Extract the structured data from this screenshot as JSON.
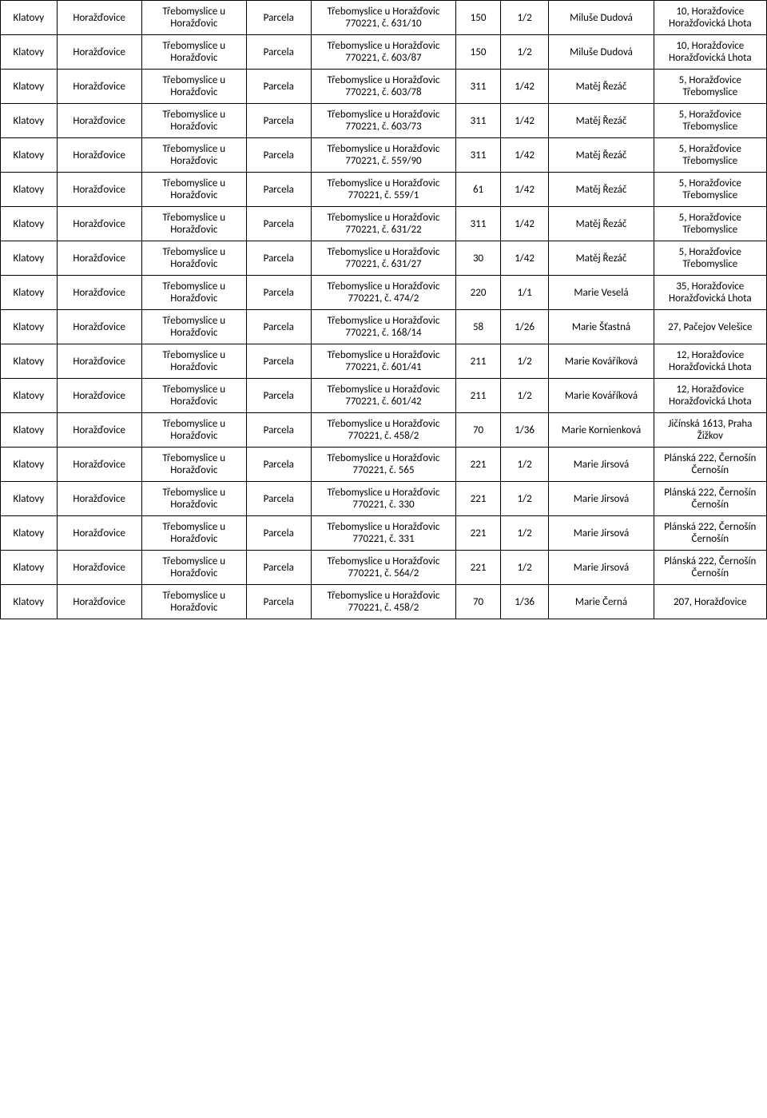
{
  "table": {
    "type": "table",
    "columns": [
      {
        "key": "okres",
        "width": "7%",
        "align": "center"
      },
      {
        "key": "obec",
        "width": "10.5%",
        "align": "center"
      },
      {
        "key": "katastr",
        "width": "13%",
        "align": "center"
      },
      {
        "key": "typ",
        "width": "8%",
        "align": "center"
      },
      {
        "key": "parcela",
        "width": "18%",
        "align": "center"
      },
      {
        "key": "vymera",
        "width": "5.5%",
        "align": "center"
      },
      {
        "key": "podil",
        "width": "6%",
        "align": "center"
      },
      {
        "key": "vlastnik",
        "width": "13%",
        "align": "center"
      },
      {
        "key": "adresa",
        "width": "14%",
        "align": "center"
      }
    ],
    "border_color": "#000000",
    "background_color": "#ffffff",
    "text_color": "#000000",
    "font_family": "Calibri",
    "font_size": 13,
    "rows": [
      {
        "okres": "Klatovy",
        "obec": "Horažďovice",
        "katastr": "Třebomyslice u Horažďovic",
        "typ": "Parcela",
        "parcela": "Třebomyslice u Horažďovic 770221, č. 631/10",
        "vymera": "150",
        "podil": "1/2",
        "vlastnik": "Miluše Dudová",
        "adresa": "10, Horažďovice Horažďovická Lhota"
      },
      {
        "okres": "Klatovy",
        "obec": "Horažďovice",
        "katastr": "Třebomyslice u Horažďovic",
        "typ": "Parcela",
        "parcela": "Třebomyslice u Horažďovic 770221, č. 603/87",
        "vymera": "150",
        "podil": "1/2",
        "vlastnik": "Miluše Dudová",
        "adresa": "10, Horažďovice Horažďovická Lhota"
      },
      {
        "okres": "Klatovy",
        "obec": "Horažďovice",
        "katastr": "Třebomyslice u Horažďovic",
        "typ": "Parcela",
        "parcela": "Třebomyslice u Horažďovic 770221, č. 603/78",
        "vymera": "311",
        "podil": "1/42",
        "vlastnik": "Matěj Řezáč",
        "adresa": "5, Horažďovice Třebomyslice"
      },
      {
        "okres": "Klatovy",
        "obec": "Horažďovice",
        "katastr": "Třebomyslice u Horažďovic",
        "typ": "Parcela",
        "parcela": "Třebomyslice u Horažďovic 770221, č. 603/73",
        "vymera": "311",
        "podil": "1/42",
        "vlastnik": "Matěj Řezáč",
        "adresa": "5, Horažďovice Třebomyslice"
      },
      {
        "okres": "Klatovy",
        "obec": "Horažďovice",
        "katastr": "Třebomyslice u Horažďovic",
        "typ": "Parcela",
        "parcela": "Třebomyslice u Horažďovic 770221, č. 559/90",
        "vymera": "311",
        "podil": "1/42",
        "vlastnik": "Matěj Řezáč",
        "adresa": "5, Horažďovice Třebomyslice"
      },
      {
        "okres": "Klatovy",
        "obec": "Horažďovice",
        "katastr": "Třebomyslice u Horažďovic",
        "typ": "Parcela",
        "parcela": "Třebomyslice u Horažďovic 770221, č. 559/1",
        "vymera": "61",
        "podil": "1/42",
        "vlastnik": "Matěj Řezáč",
        "adresa": "5, Horažďovice Třebomyslice"
      },
      {
        "okres": "Klatovy",
        "obec": "Horažďovice",
        "katastr": "Třebomyslice u Horažďovic",
        "typ": "Parcela",
        "parcela": "Třebomyslice u Horažďovic 770221, č. 631/22",
        "vymera": "311",
        "podil": "1/42",
        "vlastnik": "Matěj Řezáč",
        "adresa": "5, Horažďovice Třebomyslice"
      },
      {
        "okres": "Klatovy",
        "obec": "Horažďovice",
        "katastr": "Třebomyslice u Horažďovic",
        "typ": "Parcela",
        "parcela": "Třebomyslice u Horažďovic 770221, č. 631/27",
        "vymera": "30",
        "podil": "1/42",
        "vlastnik": "Matěj Řezáč",
        "adresa": "5, Horažďovice Třebomyslice"
      },
      {
        "okres": "Klatovy",
        "obec": "Horažďovice",
        "katastr": "Třebomyslice u Horažďovic",
        "typ": "Parcela",
        "parcela": "Třebomyslice u Horažďovic 770221, č. 474/2",
        "vymera": "220",
        "podil": "1/1",
        "vlastnik": "Marie Veselá",
        "adresa": "35, Horažďovice Horažďovická Lhota"
      },
      {
        "okres": "Klatovy",
        "obec": "Horažďovice",
        "katastr": "Třebomyslice u Horažďovic",
        "typ": "Parcela",
        "parcela": "Třebomyslice u Horažďovic 770221, č. 168/14",
        "vymera": "58",
        "podil": "1/26",
        "vlastnik": "Marie Šťastná",
        "adresa": "27, Pačejov Velešice"
      },
      {
        "okres": "Klatovy",
        "obec": "Horažďovice",
        "katastr": "Třebomyslice u Horažďovic",
        "typ": "Parcela",
        "parcela": "Třebomyslice u Horažďovic 770221, č. 601/41",
        "vymera": "211",
        "podil": "1/2",
        "vlastnik": "Marie Kováříková",
        "adresa": "12, Horažďovice Horažďovická Lhota"
      },
      {
        "okres": "Klatovy",
        "obec": "Horažďovice",
        "katastr": "Třebomyslice u Horažďovic",
        "typ": "Parcela",
        "parcela": "Třebomyslice u Horažďovic 770221, č. 601/42",
        "vymera": "211",
        "podil": "1/2",
        "vlastnik": "Marie Kováříková",
        "adresa": "12, Horažďovice Horažďovická Lhota"
      },
      {
        "okres": "Klatovy",
        "obec": "Horažďovice",
        "katastr": "Třebomyslice u Horažďovic",
        "typ": "Parcela",
        "parcela": "Třebomyslice u Horažďovic 770221, č. 458/2",
        "vymera": "70",
        "podil": "1/36",
        "vlastnik": "Marie Kornienková",
        "adresa": "Jičínská 1613, Praha Žižkov"
      },
      {
        "okres": "Klatovy",
        "obec": "Horažďovice",
        "katastr": "Třebomyslice u Horažďovic",
        "typ": "Parcela",
        "parcela": "Třebomyslice u Horažďovic 770221, č. 565",
        "vymera": "221",
        "podil": "1/2",
        "vlastnik": "Marie Jirsová",
        "adresa": "Plánská 222, Černošín Černošín"
      },
      {
        "okres": "Klatovy",
        "obec": "Horažďovice",
        "katastr": "Třebomyslice u Horažďovic",
        "typ": "Parcela",
        "parcela": "Třebomyslice u Horažďovic 770221, č. 330",
        "vymera": "221",
        "podil": "1/2",
        "vlastnik": "Marie Jirsová",
        "adresa": "Plánská 222, Černošín Černošín"
      },
      {
        "okres": "Klatovy",
        "obec": "Horažďovice",
        "katastr": "Třebomyslice u Horažďovic",
        "typ": "Parcela",
        "parcela": "Třebomyslice u Horažďovic 770221, č. 331",
        "vymera": "221",
        "podil": "1/2",
        "vlastnik": "Marie Jirsová",
        "adresa": "Plánská 222, Černošín Černošín"
      },
      {
        "okres": "Klatovy",
        "obec": "Horažďovice",
        "katastr": "Třebomyslice u Horažďovic",
        "typ": "Parcela",
        "parcela": "Třebomyslice u Horažďovic 770221, č. 564/2",
        "vymera": "221",
        "podil": "1/2",
        "vlastnik": "Marie Jirsová",
        "adresa": "Plánská 222, Černošín Černošín"
      },
      {
        "okres": "Klatovy",
        "obec": "Horažďovice",
        "katastr": "Třebomyslice u Horažďovic",
        "typ": "Parcela",
        "parcela": "Třebomyslice u Horažďovic 770221, č. 458/2",
        "vymera": "70",
        "podil": "1/36",
        "vlastnik": "Marie Černá",
        "adresa": "207, Horažďovice"
      }
    ]
  }
}
